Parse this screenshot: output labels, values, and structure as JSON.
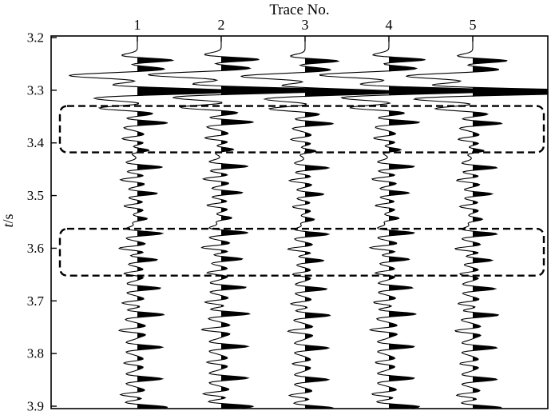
{
  "chart_data": {
    "type": "seismic-wiggle",
    "title": "Trace No.",
    "xlabel": "Trace No.",
    "ylabel": "t/s",
    "ylabel_parts": {
      "var": "t",
      "unit": "/s"
    },
    "x_axis_position": "top",
    "trace_numbers": [
      "1",
      "2",
      "3",
      "4",
      "5"
    ],
    "yticks": [
      "3.2",
      "3.3",
      "3.4",
      "3.5",
      "3.6",
      "3.7",
      "3.8",
      "3.9"
    ],
    "t_range": [
      3.197,
      3.905
    ],
    "grid": false,
    "legend": false,
    "wavelet": "ricker",
    "amplitude_unit": "trace-spacing",
    "fill_rule": "positive-lobes-black",
    "colors": {
      "line": "#000000",
      "fill": "#000000",
      "background": "#ffffff",
      "box": "#000000"
    },
    "events": [
      {
        "t": 3.243,
        "a": 0.42,
        "f": 42
      },
      {
        "t": 3.272,
        "a": -0.8,
        "f": 30
      },
      {
        "t": 3.302,
        "a": 1.25,
        "f": 28
      },
      {
        "t": 3.334,
        "a": -0.45,
        "f": 36
      },
      {
        "t": 3.362,
        "a": 0.36,
        "f": 42
      },
      {
        "t": 3.392,
        "a": -0.18,
        "f": 46
      },
      {
        "t": 3.414,
        "a": 0.14,
        "f": 50
      },
      {
        "t": 3.446,
        "a": 0.3,
        "f": 44
      },
      {
        "t": 3.47,
        "a": -0.2,
        "f": 46
      },
      {
        "t": 3.496,
        "a": 0.24,
        "f": 46
      },
      {
        "t": 3.52,
        "a": -0.16,
        "f": 48
      },
      {
        "t": 3.544,
        "a": 0.12,
        "f": 50
      },
      {
        "t": 3.572,
        "a": 0.3,
        "f": 42
      },
      {
        "t": 3.6,
        "a": -0.22,
        "f": 46
      },
      {
        "t": 3.622,
        "a": 0.24,
        "f": 46
      },
      {
        "t": 3.648,
        "a": -0.16,
        "f": 48
      },
      {
        "t": 3.676,
        "a": 0.28,
        "f": 44
      },
      {
        "t": 3.704,
        "a": -0.18,
        "f": 48
      },
      {
        "t": 3.726,
        "a": 0.32,
        "f": 42
      },
      {
        "t": 3.756,
        "a": -0.22,
        "f": 46
      },
      {
        "t": 3.788,
        "a": 0.3,
        "f": 42
      },
      {
        "t": 3.818,
        "a": -0.16,
        "f": 48
      },
      {
        "t": 3.848,
        "a": 0.3,
        "f": 42
      },
      {
        "t": 3.878,
        "a": -0.2,
        "f": 46
      },
      {
        "t": 3.902,
        "a": 0.36,
        "f": 40
      }
    ],
    "trace_amp_scale": [
      1.0,
      1.07,
      0.94,
      1.02,
      0.97
    ],
    "trace_time_shift": [
      0,
      0.0015,
      -0.0015,
      0.001,
      -0.001
    ],
    "main_peak_index": 2,
    "main_peak_trace_scale": [
      1.0,
      1.05,
      1.0,
      1.08,
      1.38
    ],
    "highlight_boxes": [
      {
        "t0": 3.33,
        "t1": 3.418
      },
      {
        "t0": 3.563,
        "t1": 3.652
      }
    ]
  }
}
